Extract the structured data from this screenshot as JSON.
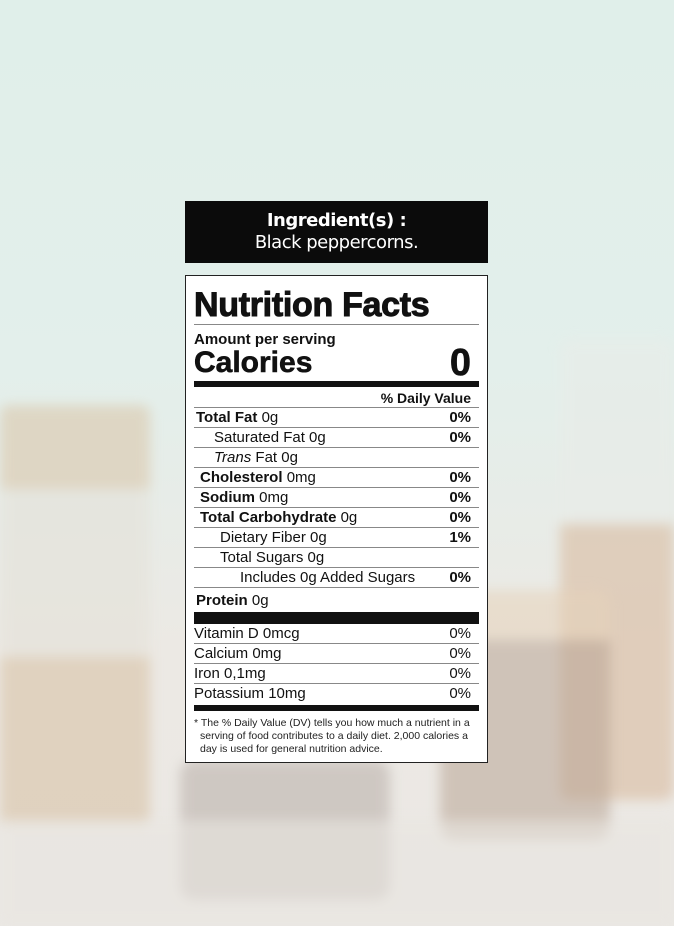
{
  "ingredients": {
    "heading": "Ingredient(s) :",
    "text": "Black peppercorns."
  },
  "label": {
    "title": "Nutrition Facts",
    "amount_per_serving": "Amount per serving",
    "calories_label": "Calories",
    "calories_value": "0",
    "dv_header": "% Daily Value",
    "nutrients": [
      {
        "name": "Total Fat",
        "amount": "0g",
        "dv": "0%",
        "bold": true,
        "indent": 0
      },
      {
        "name": "Saturated Fat 0g",
        "amount": "",
        "dv": "0%",
        "bold": false,
        "indent": 1
      },
      {
        "name": "Trans",
        "amount": "Fat 0g",
        "dv": "",
        "bold": false,
        "indent": 1,
        "italic": true
      },
      {
        "name": "Cholesterol",
        "amount": "0mg",
        "dv": "0%",
        "bold": true,
        "indent": 0
      },
      {
        "name": "Sodium",
        "amount": "0mg",
        "dv": "0%",
        "bold": true,
        "indent": 0
      },
      {
        "name": "Total Carbohydrate",
        "amount": "0g",
        "dv": "0%",
        "bold": true,
        "indent": 0
      },
      {
        "name": "Dietary Fiber 0g",
        "amount": "",
        "dv": "1%",
        "bold": false,
        "indent": 1
      },
      {
        "name": "Total Sugars 0g",
        "amount": "",
        "dv": "",
        "bold": false,
        "indent": 1
      },
      {
        "name": "Includes 0g Added Sugars",
        "amount": "",
        "dv": "0%",
        "bold": false,
        "indent": 2
      },
      {
        "name": "Protein",
        "amount": "0g",
        "dv": "",
        "bold": true,
        "indent": 0
      }
    ],
    "vitamins": [
      {
        "name": "Vitamin D 0mcg",
        "dv": "0%"
      },
      {
        "name": "Calcium 0mg",
        "dv": "0%"
      },
      {
        "name": "Iron 0,1mg",
        "dv": "0%"
      },
      {
        "name": "Potassium 10mg",
        "dv": "0%"
      }
    ],
    "footnote": "* The % Daily Value (DV) tells you how much a nutrient in a serving of food contributes to a daily diet. 2,000 calories a day is used for general nutrition advice."
  }
}
